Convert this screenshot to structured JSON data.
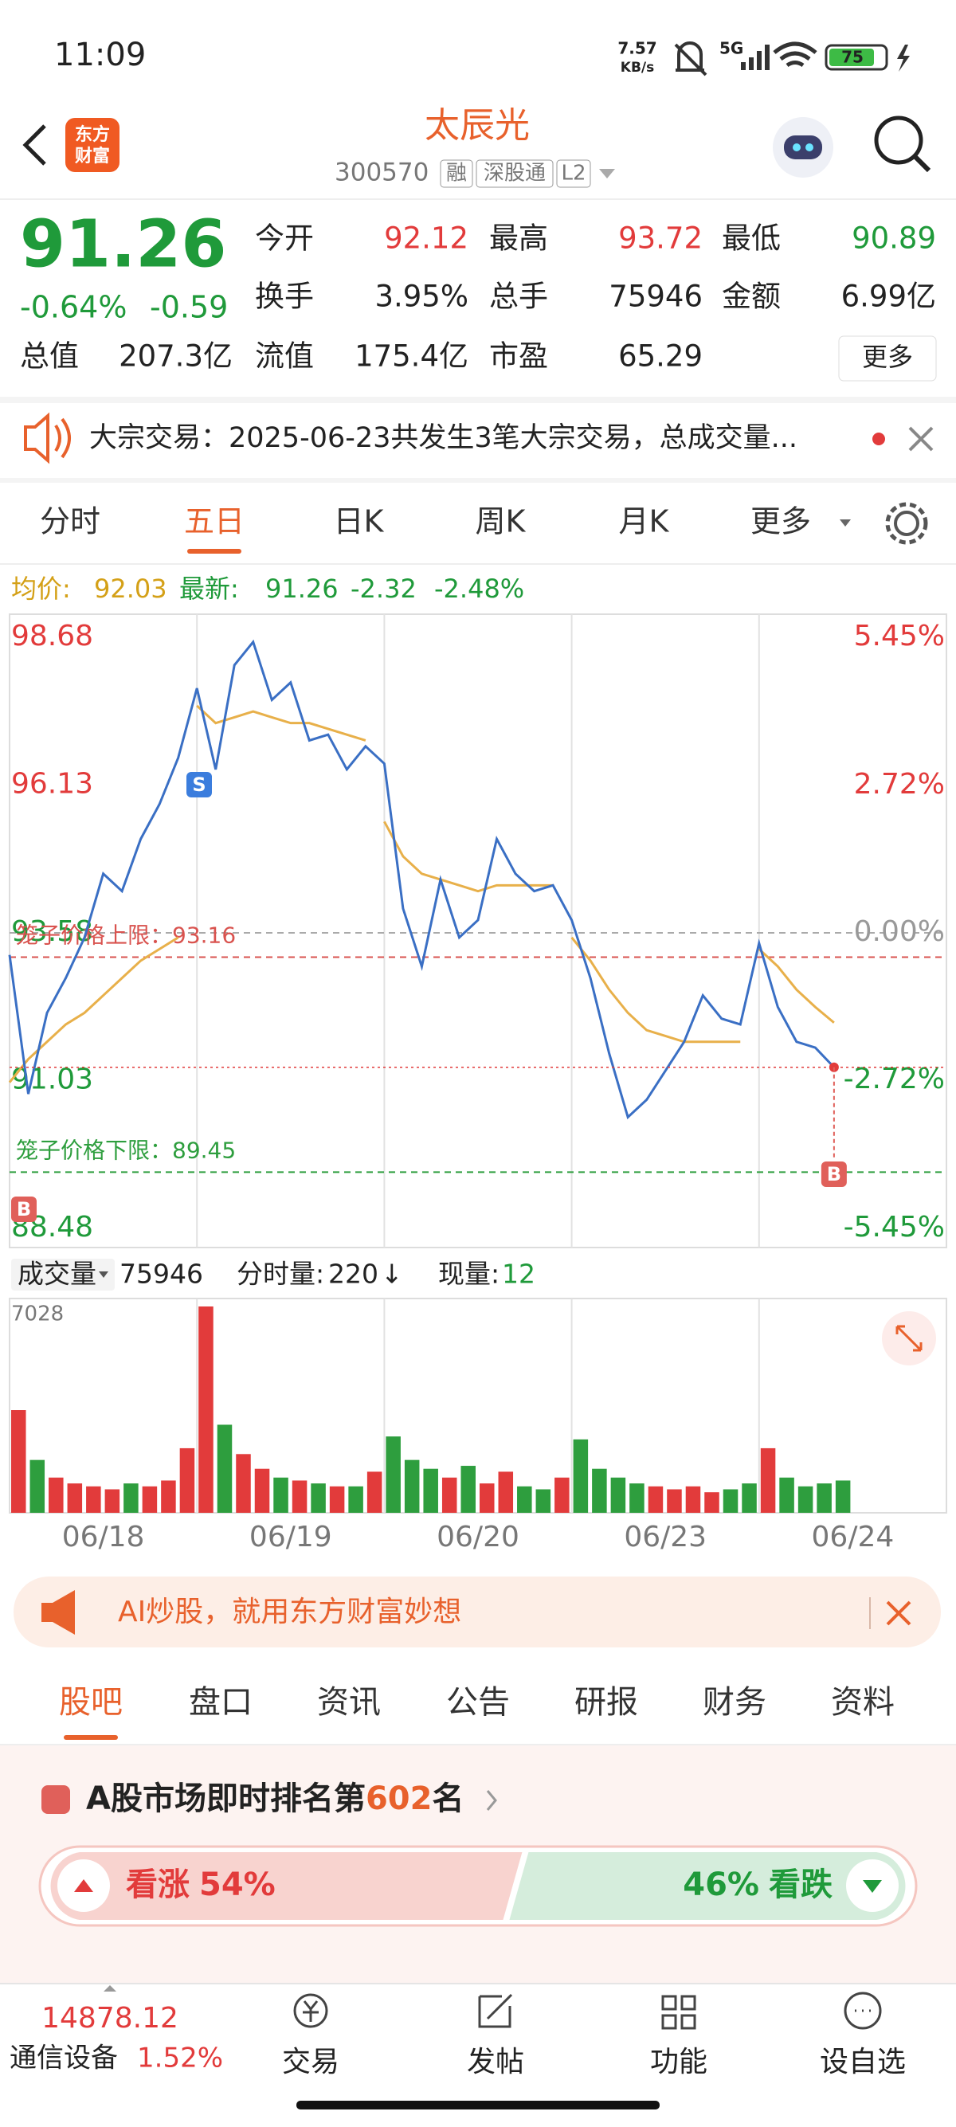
{
  "status": {
    "time": "11:09",
    "speed": "7.57",
    "speed_unit": "KB/s",
    "network": "5G",
    "battery": "75"
  },
  "header": {
    "logo": [
      "东方",
      "财富"
    ],
    "name": "太辰光",
    "code": "300570",
    "tags": [
      "融",
      "深股通",
      "L2"
    ]
  },
  "quote": {
    "price": "91.26",
    "change_pct": "-0.64%",
    "change": "-0.59",
    "fields": [
      {
        "label": "今开",
        "value": "92.12"
      },
      {
        "label": "最高",
        "value": "93.72"
      },
      {
        "label": "最低",
        "value": "90.89"
      },
      {
        "label": "换手",
        "value": "3.95%"
      },
      {
        "label": "总手",
        "value": "75946"
      },
      {
        "label": "金额",
        "value": "6.99亿"
      },
      {
        "label": "总值",
        "value": "207.3亿"
      },
      {
        "label": "流值",
        "value": "175.4亿"
      },
      {
        "label": "市盈",
        "value": "65.29"
      }
    ],
    "more": "更多"
  },
  "notice": "大宗交易：2025-06-23共发生3笔大宗交易，总成交量...",
  "tabs": [
    "分时",
    "五日",
    "日K",
    "周K",
    "月K",
    "更多"
  ],
  "legend": {
    "avg_label": "均价:",
    "avg": "92.03",
    "latest_label": "最新:",
    "latest": "91.26",
    "change": "-2.32",
    "change_pct": "-2.48%"
  },
  "chart_data": {
    "type": "line",
    "ylim": [
      88.48,
      98.68
    ],
    "yticks": [
      98.68,
      96.13,
      93.58,
      91.03,
      88.48
    ],
    "y2lim": [
      -5.45,
      5.45
    ],
    "y2ticks": [
      {
        "value": 5.45,
        "label": "5.45%"
      },
      {
        "value": 2.72,
        "label": "2.72%"
      },
      {
        "value": 0,
        "label": "0.00%"
      },
      {
        "value": -2.72,
        "label": "-2.72%"
      },
      {
        "value": -5.45,
        "label": "-5.45%"
      }
    ],
    "categories": [
      "06/18",
      "06/19",
      "06/20",
      "06/23",
      "06/24"
    ],
    "points_per_day": 10,
    "price": {
      "color": "#3a6fc4",
      "values": [
        93.2,
        90.8,
        92.2,
        92.8,
        93.5,
        94.6,
        94.3,
        95.2,
        95.8,
        96.6,
        97.8,
        96.4,
        98.2,
        98.6,
        97.6,
        97.9,
        96.9,
        97.0,
        96.4,
        96.8,
        96.5,
        94.0,
        93.0,
        94.5,
        93.5,
        93.8,
        95.2,
        94.6,
        94.3,
        94.4,
        93.8,
        92.8,
        91.5,
        90.4,
        90.7,
        91.2,
        91.7,
        92.5,
        92.1,
        92.0,
        93.4,
        92.3,
        91.7,
        91.6,
        91.26
      ]
    },
    "avg": {
      "color": "#e8b04a",
      "values": [
        91.0,
        91.4,
        91.7,
        92.0,
        92.2,
        92.5,
        92.8,
        93.1,
        93.3,
        93.5,
        97.5,
        97.2,
        97.3,
        97.4,
        97.3,
        97.2,
        97.2,
        97.1,
        97.0,
        96.9,
        95.5,
        94.9,
        94.6,
        94.5,
        94.4,
        94.3,
        94.4,
        94.4,
        94.4,
        94.4,
        93.5,
        93.1,
        92.6,
        92.2,
        91.9,
        91.8,
        91.7,
        91.7,
        91.7,
        91.7,
        93.3,
        93.0,
        92.6,
        92.3,
        92.03
      ]
    },
    "limits": [
      {
        "label": "笼子价格上限：",
        "value": 93.16,
        "color": "#d9534f"
      },
      {
        "label": "笼子价格下限：",
        "value": 89.45,
        "color": "#2e9e3e"
      }
    ],
    "markers": [
      "S",
      "B",
      "B"
    ],
    "volume": {
      "ylim": [
        0,
        7028
      ],
      "yticks": [
        7028
      ],
      "up_color": "#e23b3b",
      "down_color": "#2e9e3e",
      "values": [
        3500,
        1800,
        1200,
        1000,
        900,
        800,
        1000,
        900,
        1100,
        2200,
        7028,
        3000,
        2000,
        1500,
        1200,
        1100,
        1000,
        900,
        900,
        1400,
        2600,
        1800,
        1500,
        1200,
        1600,
        1000,
        1400,
        900,
        800,
        1200,
        2500,
        1500,
        1200,
        1000,
        900,
        800,
        900,
        700,
        800,
        1000,
        2200,
        1200,
        900,
        1000,
        1100
      ]
    }
  },
  "volume_header": {
    "label": "成交量",
    "total": "75946",
    "per_min_label": "分时量:",
    "per_min": "220",
    "arrow": "↓",
    "now_label": "现量:",
    "now": "12"
  },
  "banner": "AI炒股，就用东方财富妙想",
  "subtabs": [
    "股吧",
    "盘口",
    "资讯",
    "公告",
    "研报",
    "财务",
    "资料"
  ],
  "ranking": {
    "prefix": "A股市场即时排名第",
    "rank": "602",
    "suffix": "名"
  },
  "vote": {
    "up": {
      "label": "看涨",
      "value": 54,
      "value_label": "54%"
    },
    "down": {
      "label": "看跌",
      "value": 46,
      "value_label": "46%"
    }
  },
  "bottom": {
    "index_value": "14878.12",
    "sector": "通信设备",
    "sector_change": "1.52%",
    "nav": [
      "交易",
      "发帖",
      "功能",
      "设自选"
    ]
  }
}
